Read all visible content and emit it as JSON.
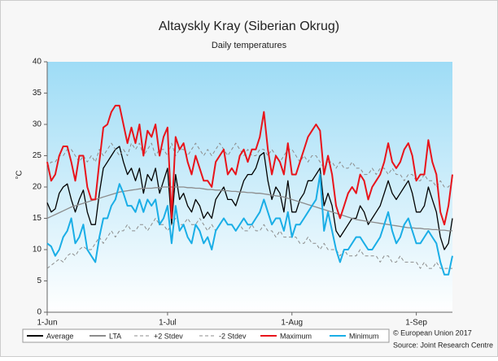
{
  "chart_data": {
    "type": "line",
    "title": "Altayskly Kray (Siberian Okrug)",
    "subtitle": "Daily temperatures",
    "y_label": "°C",
    "source": [
      "© European Union 2017",
      "Source: Joint Research Centre"
    ],
    "x": [
      0,
      1,
      2,
      3,
      4,
      5,
      6,
      7,
      8,
      9,
      10,
      11,
      12,
      13,
      14,
      15,
      16,
      17,
      18,
      19,
      20,
      21,
      22,
      23,
      24,
      25,
      26,
      27,
      28,
      29,
      30,
      31,
      32,
      33,
      34,
      35,
      36,
      37,
      38,
      39,
      40,
      41,
      42,
      43,
      44,
      45,
      46,
      47,
      48,
      49,
      50,
      51,
      52,
      53,
      54,
      55,
      56,
      57,
      58,
      59,
      60,
      61,
      62,
      63,
      64,
      65,
      66,
      67,
      68,
      69,
      70,
      71,
      72,
      73,
      74,
      75,
      76,
      77,
      78,
      79,
      80,
      81,
      82,
      83,
      84,
      85,
      86,
      87,
      88,
      89,
      90,
      91,
      92,
      93,
      94,
      95,
      96,
      97,
      98,
      99,
      100,
      101
    ],
    "xlim": [
      0,
      101
    ],
    "xticks": [
      {
        "value": 0,
        "label": "1-Jun"
      },
      {
        "value": 30,
        "label": "1-Jul"
      },
      {
        "value": 61,
        "label": "1-Aug"
      },
      {
        "value": 92,
        "label": "1-Sep"
      }
    ],
    "ylim": [
      0,
      40
    ],
    "yticks": [
      0,
      5,
      10,
      15,
      20,
      25,
      30,
      35,
      40
    ],
    "grid": false,
    "legend": "bottom",
    "series": [
      {
        "name": "Average",
        "color": "#000000",
        "dash": false,
        "values": [
          17.5,
          16,
          16.5,
          19,
          20,
          20.5,
          18,
          16,
          18,
          19.5,
          16,
          14,
          14,
          19,
          23,
          24,
          25,
          26,
          26.5,
          24,
          22,
          23,
          21,
          23,
          19,
          22,
          21,
          23,
          19,
          21,
          23,
          14,
          22,
          18,
          19,
          17,
          16,
          18,
          17,
          15,
          16,
          15,
          18,
          19,
          20,
          18,
          18,
          17,
          19,
          21,
          22,
          22,
          23,
          25,
          25.5,
          21,
          18,
          20,
          19,
          16,
          21,
          16,
          16,
          18,
          19,
          21,
          21,
          22,
          23,
          17,
          19,
          17,
          13,
          12,
          13,
          14,
          15,
          15,
          17,
          16,
          14,
          15,
          16,
          17,
          19,
          21,
          19,
          18,
          19,
          20,
          21,
          19,
          16,
          16,
          17,
          20,
          18,
          16,
          12,
          10,
          11,
          15
        ]
      },
      {
        "name": "LTA",
        "color": "#8c8c8c",
        "dash": false,
        "values": [
          15,
          15.3,
          15.6,
          15.9,
          16.2,
          16.5,
          16.8,
          17,
          17.2,
          17.4,
          17.6,
          17.8,
          18,
          18.2,
          18.4,
          18.6,
          18.8,
          19,
          19.2,
          19.3,
          19.4,
          19.5,
          19.6,
          19.7,
          19.8,
          19.8,
          19.8,
          19.9,
          19.9,
          20,
          20,
          20,
          20,
          20,
          20,
          19.9,
          19.9,
          19.8,
          19.8,
          19.7,
          19.6,
          19.6,
          19.5,
          19.5,
          19.4,
          19.4,
          19.3,
          19.3,
          19.2,
          19.2,
          19.1,
          19.1,
          19,
          19,
          18.9,
          18.8,
          18.7,
          18.6,
          18.5,
          18.4,
          18.2,
          18,
          17.8,
          17.6,
          17.4,
          17.2,
          17,
          16.8,
          16.6,
          16.4,
          16.2,
          16,
          15.8,
          15.6,
          15.4,
          15.2,
          15,
          14.8,
          14.7,
          14.6,
          14.5,
          14.4,
          14.3,
          14.2,
          14.1,
          14,
          13.9,
          13.8,
          13.7,
          13.6,
          13.5,
          13.5,
          13.4,
          13.4,
          13.3,
          13.3,
          13.2,
          13.2,
          13.1,
          13.1,
          13,
          13
        ]
      },
      {
        "name": "+2 Stdev",
        "color": "#8c8c8c",
        "dash": true,
        "values": [
          23,
          24,
          24,
          25,
          25,
          26,
          26,
          25,
          24,
          25,
          24,
          25,
          24,
          26,
          25,
          26,
          27,
          26,
          25,
          26,
          25,
          27,
          26,
          27,
          25,
          26,
          27,
          25,
          26,
          26,
          25,
          27,
          25,
          26,
          26,
          25,
          26,
          27,
          26,
          25,
          26,
          25,
          26,
          27,
          26,
          25,
          26,
          27,
          26,
          25,
          26,
          25,
          25,
          26,
          26,
          25,
          26,
          25,
          24,
          25,
          26,
          26,
          25,
          24,
          25,
          24,
          25,
          25,
          24,
          23,
          24,
          24,
          23,
          24,
          23,
          23,
          24,
          23,
          23,
          22,
          22,
          23,
          22,
          23,
          23,
          22,
          23,
          22,
          22,
          21,
          22,
          22,
          21,
          21,
          22,
          21,
          21,
          20,
          21,
          20,
          20,
          21
        ]
      },
      {
        "name": "-2 Stdev",
        "color": "#8c8c8c",
        "dash": true,
        "values": [
          7,
          7.5,
          8,
          8.5,
          8,
          9,
          9.5,
          9,
          10,
          10.5,
          10,
          10,
          11,
          12,
          11,
          12,
          13,
          12,
          13,
          13,
          14,
          13,
          13,
          14,
          14,
          13,
          14,
          15,
          14,
          14,
          13,
          14,
          15,
          14,
          14,
          15,
          14,
          14,
          15,
          14,
          13,
          14,
          13,
          14,
          15,
          14,
          14,
          13,
          14,
          13,
          13,
          14,
          13,
          13,
          14,
          13,
          13,
          12,
          13,
          12,
          12,
          12,
          12,
          11,
          11,
          12,
          11,
          11,
          10,
          11,
          10,
          10,
          10,
          9,
          10,
          9,
          9,
          9,
          10,
          9,
          9,
          9,
          9,
          8,
          9,
          9,
          8,
          8,
          9,
          8,
          8,
          8,
          8,
          7,
          8,
          7,
          7,
          8,
          7,
          7,
          7,
          7
        ]
      },
      {
        "name": "Maximum",
        "color": "#e8141b",
        "dash": false,
        "values": [
          24,
          21,
          22,
          25,
          26.5,
          26.5,
          24,
          21,
          25,
          25,
          20,
          18,
          18,
          24,
          29.5,
          30,
          32,
          33,
          33,
          30,
          27,
          29.5,
          27,
          30,
          25,
          29,
          28,
          30,
          25,
          28,
          29.5,
          15,
          28,
          26,
          27,
          24,
          22,
          25,
          23,
          21,
          21,
          20,
          24,
          25,
          26,
          22,
          23,
          22,
          25,
          26,
          24,
          26,
          26,
          28,
          32,
          26,
          22,
          25,
          24,
          22,
          27,
          22,
          22,
          24,
          26,
          28,
          29,
          30,
          29,
          22,
          25,
          22,
          17,
          15,
          17,
          19,
          20,
          19,
          22,
          21,
          18,
          20,
          21,
          22,
          24,
          27,
          24,
          23,
          24,
          26,
          27,
          25,
          21,
          22,
          22,
          27.5,
          24,
          22,
          16,
          14,
          17,
          22
        ]
      },
      {
        "name": "Minimum",
        "color": "#1aaee6",
        "dash": false,
        "values": [
          11,
          10.5,
          9,
          10,
          12,
          13,
          15,
          11,
          12,
          14,
          10,
          9,
          8,
          12,
          15,
          15,
          17,
          18,
          20.5,
          19,
          17,
          17,
          16,
          18,
          16,
          18,
          17,
          18,
          14,
          15,
          17,
          11,
          17,
          13,
          14,
          12,
          11,
          14,
          13,
          11,
          12,
          10,
          13,
          14,
          15,
          14,
          14,
          13,
          14,
          15,
          14,
          14,
          15,
          16,
          18,
          16,
          14,
          15,
          15,
          13,
          16,
          12,
          14,
          14,
          15,
          16,
          17,
          18,
          22,
          13,
          16,
          13,
          10,
          8,
          10,
          10,
          11,
          12,
          12,
          11,
          10,
          10,
          11,
          12,
          14,
          16,
          13,
          11,
          12,
          14,
          15,
          13,
          11,
          11,
          12,
          13,
          12,
          11,
          8,
          6,
          6,
          9
        ]
      }
    ]
  }
}
